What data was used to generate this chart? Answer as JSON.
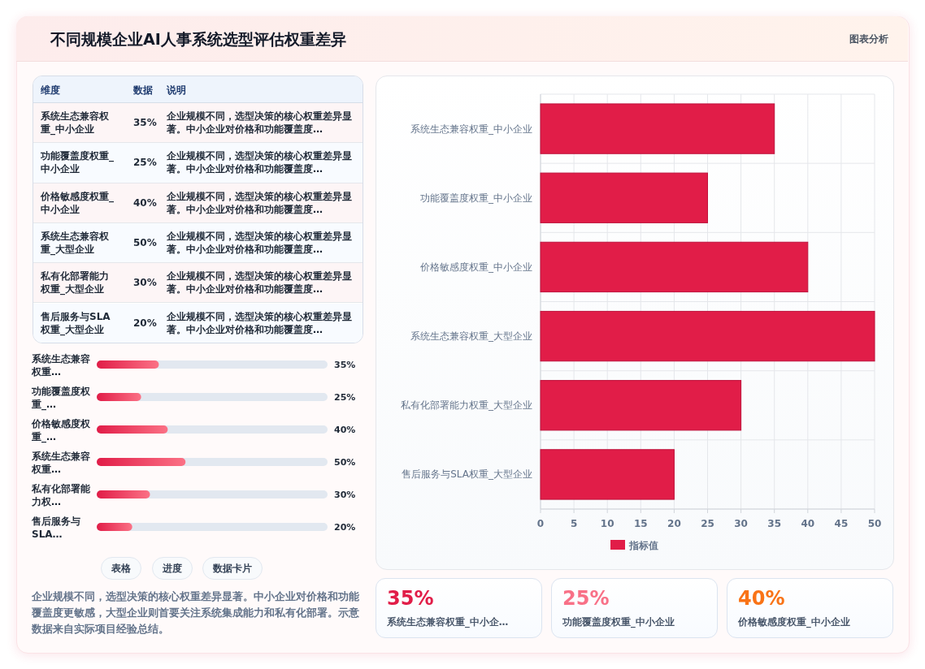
{
  "chart_data": [
    {
      "type": "other",
      "title": "不同规模企业AI人事系统选型评估权重差异",
      "annotations": [
        "图表分析"
      ]
    },
    {
      "type": "bar",
      "orientation": "horizontal",
      "categories": [
        "系统生态兼容权重_中小企业",
        "功能覆盖度权重_中小企业",
        "价格敏感度权重_中小企业",
        "系统生态兼容权重_大型企业",
        "私有化部署能力权重_大型企业",
        "售后服务与SLA权重_大型企业"
      ],
      "series": [
        {
          "name": "指标值",
          "color": "#e11d48",
          "values": [
            35,
            25,
            40,
            50,
            30,
            20
          ]
        }
      ],
      "xlim": [
        0,
        50
      ],
      "xticks": [
        0,
        5,
        10,
        15,
        20,
        25,
        30,
        35,
        40,
        45,
        50
      ],
      "grid": true,
      "legend": "bottom"
    },
    {
      "type": "other",
      "categories": [
        "系统生态兼容权重_中小企业",
        "功能覆盖度权重_中小企业",
        "价格敏感度权重_中小企业",
        "系统生态兼容权重_大型企业",
        "私有化部署能力权重_大型企业",
        "售后服务与SLA权重_大型企业"
      ],
      "value_labels": [
        "35%",
        "25%",
        "40%",
        "50%",
        "30%",
        "20%"
      ],
      "annotations": [
        "维度",
        "数据",
        "说明",
        "企业规模不同，选型决策的核心权重差异显著。中小企业对价格和功能覆盖度…",
        "企业规模不同，选型决策的核心权重差异显著。中小企业对价格和功能覆盖度…",
        "企业规模不同，选型决策的核心权重差异显著。中小企业对价格和功能覆盖度…",
        "企业规模不同，选型决策的核心权重差异显著。中小企业对价格和功能覆盖度…",
        "企业规模不同，选型决策的核心权重差异显著。中小企业对价格和功能覆盖度…",
        "企业规模不同，选型决策的核心权重差异显著。中小企业对价格和功能覆盖度…"
      ]
    },
    {
      "type": "bar",
      "orientation": "horizontal",
      "categories": [
        "系统生态兼容权重…",
        "功能覆盖度权重_…",
        "价格敏感度权重_…",
        "系统生态兼容权重…",
        "私有化部署能力权…",
        "售后服务与SLA…"
      ],
      "values": [
        35,
        25,
        40,
        50,
        30,
        20
      ],
      "value_labels": [
        "35%",
        "25%",
        "40%",
        "50%",
        "30%",
        "20%"
      ],
      "color": "#e11d48",
      "xlim": [
        0,
        130
      ],
      "tick_labels": "y",
      "annotations": [
        "表格",
        "进度",
        "数据卡片",
        "企业规模不同，选型决策的核心权重差异显著。中小企业对价格和功能覆盖度更敏感，大型企业则首要关注系统集成能力和私有化部署。示意数据来自实际项目经验总结。"
      ]
    },
    {
      "type": "other",
      "categories": [
        "系统生态兼容权重_中小企…",
        "功能覆盖度权重_中小企业",
        "价格敏感度权重_中小企业"
      ],
      "value_labels": [
        "35%",
        "25%",
        "40%"
      ]
    }
  ]
}
